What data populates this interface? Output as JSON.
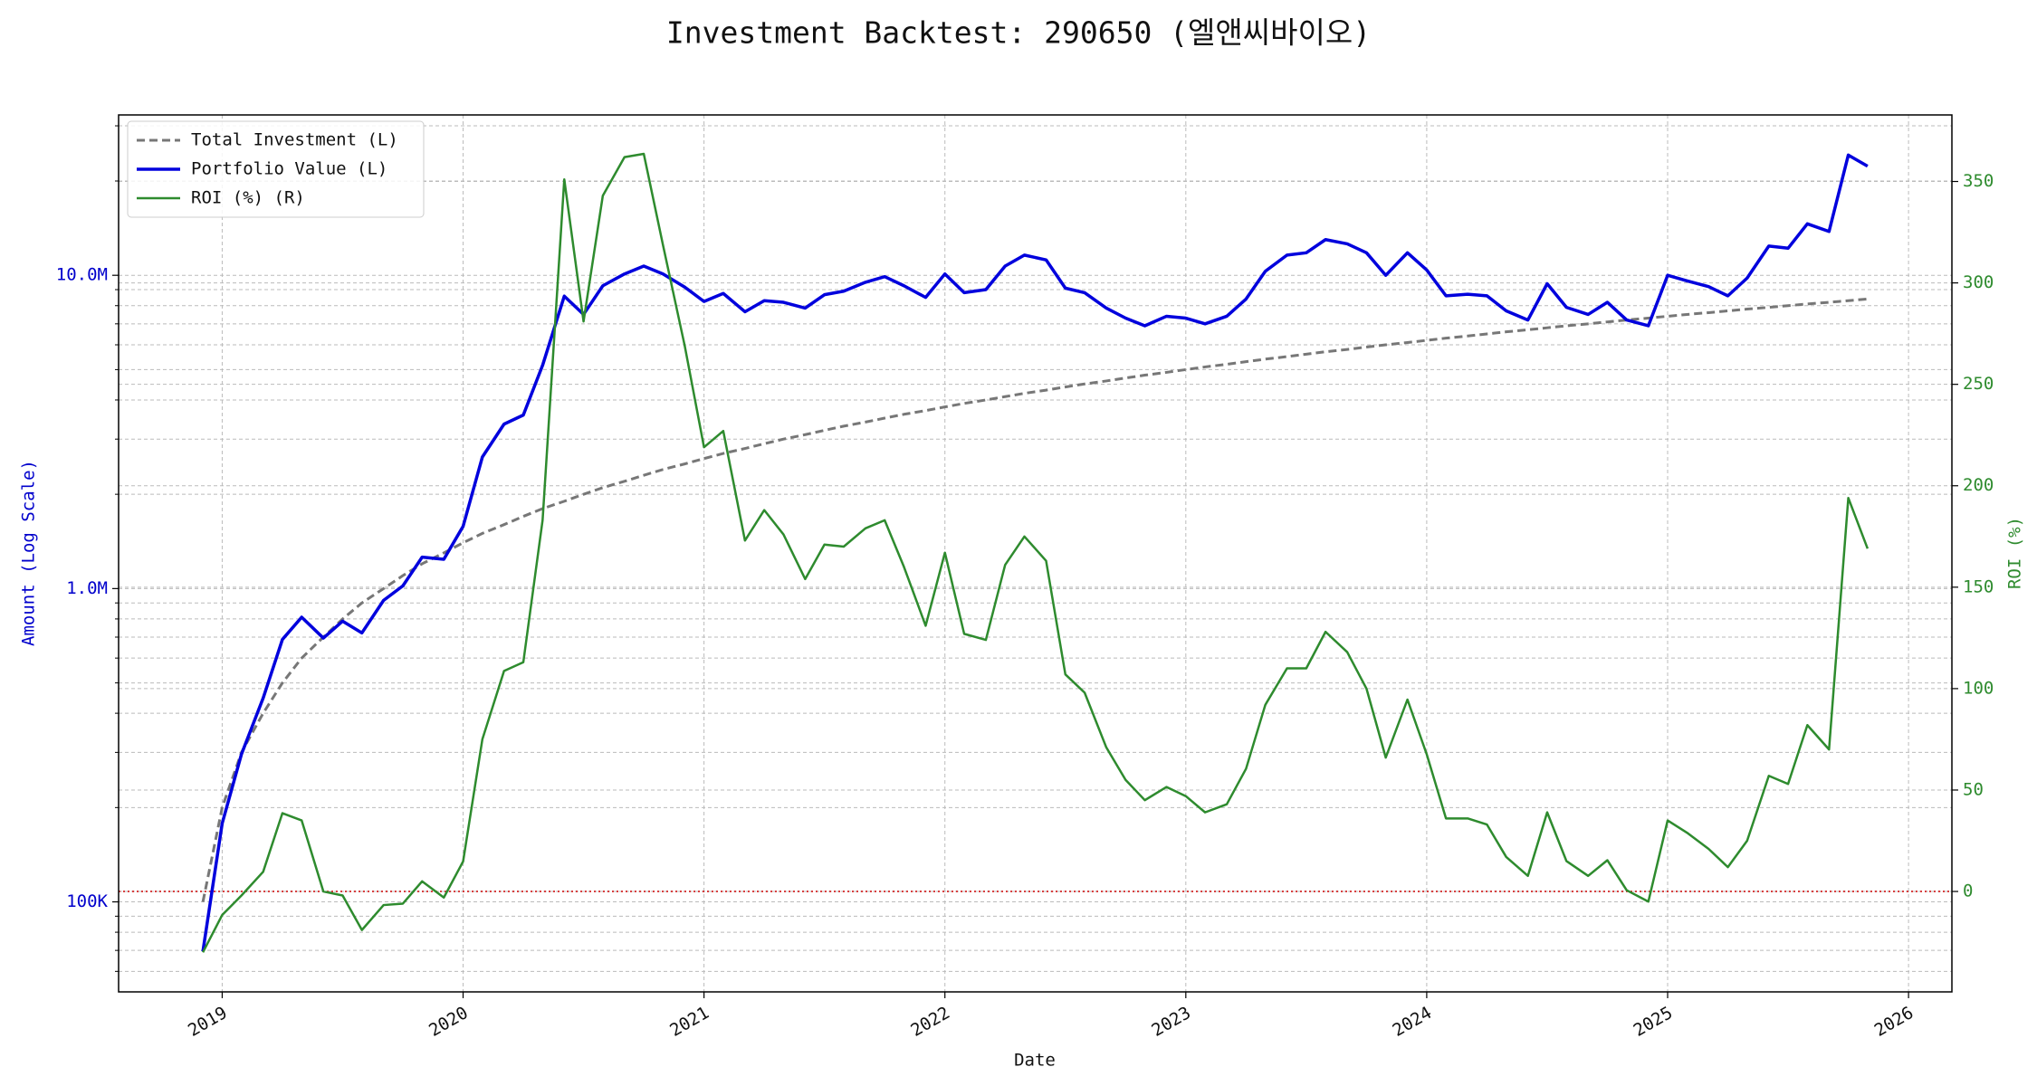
{
  "chart_data": {
    "type": "line",
    "title": "Investment Backtest: 290650 (엘앤씨바이오)",
    "xlabel": "Date",
    "ylabel": "Amount (Log Scale)",
    "y2label": "ROI (%)",
    "x": [
      2018.92,
      2019.0,
      2019.08,
      2019.17,
      2019.25,
      2019.33,
      2019.42,
      2019.5,
      2019.58,
      2019.67,
      2019.75,
      2019.83,
      2019.92,
      2020.0,
      2020.08,
      2020.17,
      2020.25,
      2020.33,
      2020.42,
      2020.5,
      2020.58,
      2020.67,
      2020.75,
      2020.83,
      2020.92,
      2021.0,
      2021.08,
      2021.17,
      2021.25,
      2021.33,
      2021.42,
      2021.5,
      2021.58,
      2021.67,
      2021.75,
      2021.83,
      2021.92,
      2022.0,
      2022.08,
      2022.17,
      2022.25,
      2022.33,
      2022.42,
      2022.5,
      2022.58,
      2022.67,
      2022.75,
      2022.83,
      2022.92,
      2023.0,
      2023.08,
      2023.17,
      2023.25,
      2023.33,
      2023.42,
      2023.5,
      2023.58,
      2023.67,
      2023.75,
      2023.83,
      2023.92,
      2024.0,
      2024.08,
      2024.17,
      2024.25,
      2024.33,
      2024.42,
      2024.5,
      2024.58,
      2024.67,
      2024.75,
      2024.83,
      2024.92,
      2025.0,
      2025.08,
      2025.17,
      2025.25,
      2025.33,
      2025.42,
      2025.5,
      2025.58,
      2025.67,
      2025.75,
      2025.83
    ],
    "series": [
      {
        "name": "Total Investment (L)",
        "color": "#777777",
        "dash": true,
        "width": 3,
        "axis": "y",
        "values": [
          100000,
          200000,
          300000,
          400000,
          500000,
          600000,
          700000,
          800000,
          900000,
          1000000,
          1100000,
          1200000,
          1300000,
          1400000,
          1500000,
          1600000,
          1700000,
          1800000,
          1900000,
          2000000,
          2100000,
          2200000,
          2300000,
          2400000,
          2500000,
          2600000,
          2700000,
          2800000,
          2900000,
          3000000,
          3100000,
          3200000,
          3300000,
          3400000,
          3500000,
          3600000,
          3700000,
          3800000,
          3900000,
          4000000,
          4100000,
          4200000,
          4300000,
          4400000,
          4500000,
          4600000,
          4700000,
          4800000,
          4900000,
          5000000,
          5100000,
          5200000,
          5300000,
          5400000,
          5500000,
          5600000,
          5700000,
          5800000,
          5900000,
          6000000,
          6100000,
          6200000,
          6300000,
          6400000,
          6500000,
          6600000,
          6700000,
          6800000,
          6900000,
          7000000,
          7100000,
          7200000,
          7300000,
          7400000,
          7500000,
          7600000,
          7700000,
          7800000,
          7900000,
          8000000,
          8100000,
          8200000,
          8300000,
          8400000
        ]
      },
      {
        "name": "Portfolio Value (L)",
        "color": "#0000dd",
        "dash": false,
        "width": 3.5,
        "axis": "y",
        "values": [
          69500,
          178000,
          296000,
          447000,
          688000,
          810000,
          695000,
          787000,
          722000,
          917000,
          1020000,
          1260000,
          1240000,
          1580000,
          2630000,
          3350000,
          3580000,
          5160000,
          8580000,
          7500000,
          9260000,
          10100000,
          10700000,
          10100000,
          9170000,
          8250000,
          8750000,
          7650000,
          8300000,
          8200000,
          7860000,
          8670000,
          8900000,
          9500000,
          9900000,
          9260000,
          8500000,
          10100000,
          8800000,
          9000000,
          10700000,
          11600000,
          11200000,
          9100000,
          8800000,
          7860000,
          7300000,
          6900000,
          7400000,
          7300000,
          7000000,
          7400000,
          8400000,
          10300000,
          11600000,
          11800000,
          13000000,
          12600000,
          11800000,
          10000000,
          11800000,
          10400000,
          8600000,
          8700000,
          8600000,
          7700000,
          7200000,
          9400000,
          7900000,
          7500000,
          8200000,
          7200000,
          6900000,
          10000000,
          9600000,
          9200000,
          8600000,
          9800000,
          12400000,
          12200000,
          14600000,
          13800000,
          24200000,
          22300000
        ]
      },
      {
        "name": "ROI (%) (R)",
        "color": "#2e8b2e",
        "dash": false,
        "width": 2.5,
        "axis": "y2",
        "values": [
          -30,
          -11.6,
          -2,
          9.7,
          38.6,
          35,
          0,
          -2,
          -19,
          -6.7,
          -6,
          5,
          -3,
          14.8,
          75,
          108.7,
          113,
          183,
          351,
          281,
          343,
          362,
          363.6,
          318.5,
          269,
          219,
          227,
          173,
          188,
          176,
          154,
          171,
          170,
          179,
          183,
          160,
          131,
          167,
          127,
          124,
          161,
          175,
          163,
          107,
          98,
          71,
          55,
          45,
          51.5,
          47,
          39,
          43,
          60.5,
          92,
          110,
          110,
          128,
          118,
          100,
          66,
          94.6,
          67.6,
          36,
          36,
          33,
          17,
          7.7,
          39,
          15,
          7.7,
          15.4,
          0.6,
          -5,
          35,
          29,
          21,
          12,
          25,
          57,
          53,
          82,
          70,
          194,
          169
        ]
      }
    ],
    "xlim": [
      2018.57,
      2026.18
    ],
    "xticks": [
      2019,
      2020,
      2021,
      2022,
      2023,
      2024,
      2025,
      2026
    ],
    "ylim": [
      51600,
      32500000
    ],
    "ylog": true,
    "yticks": [
      {
        "value": 100000,
        "label": "100K"
      },
      {
        "value": 1000000,
        "label": "1.0M"
      },
      {
        "value": 10000000,
        "label": "10.0M"
      }
    ],
    "yminorticks": [
      60000,
      70000,
      80000,
      90000,
      200000,
      300000,
      400000,
      500000,
      600000,
      700000,
      800000,
      900000,
      2000000,
      3000000,
      4000000,
      5000000,
      6000000,
      7000000,
      8000000,
      9000000,
      20000000,
      30000000
    ],
    "y2lim": [
      -49.5,
      382.8
    ],
    "y2ticks": [
      0,
      50,
      100,
      150,
      200,
      250,
      300,
      350
    ],
    "hline": {
      "axis": "y2",
      "value": 0,
      "color": "#cc0000"
    },
    "grid": true,
    "legend": "upper left"
  }
}
